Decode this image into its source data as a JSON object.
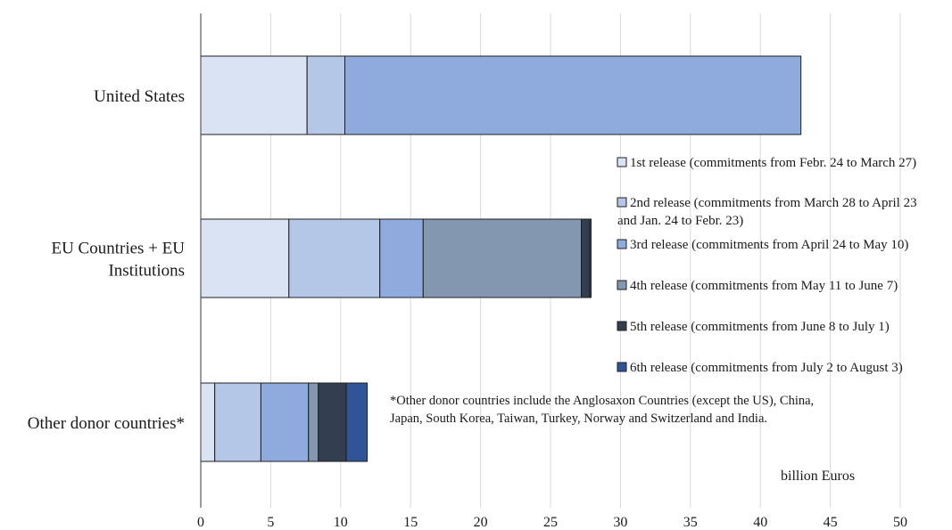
{
  "chart_data": {
    "type": "bar",
    "orientation": "horizontal",
    "stacked": true,
    "categories": [
      "United States",
      "EU Countries + EU Institutions",
      "Other donor countries*"
    ],
    "category_lines": [
      [
        "United States"
      ],
      [
        "EU Countries + EU",
        "Institutions"
      ],
      [
        "Other donor countries*"
      ]
    ],
    "series": [
      {
        "name": "1st release (commitments from Febr. 24 to March 27)",
        "legend_lines": [
          "1st release (commitments from Febr. 24 to March 27)"
        ],
        "color": "#dae3f3",
        "values": [
          7.6,
          6.3,
          1.0
        ]
      },
      {
        "name": "2nd release (commitments from March 28 to April 23 and Jan. 24 to Febr. 23)",
        "legend_lines": [
          "2nd release (commitments from March 28 to April 23",
          "and Jan. 24 to Febr. 23)"
        ],
        "color": "#b4c7e7",
        "values": [
          2.7,
          6.5,
          3.3
        ]
      },
      {
        "name": "3rd release (commitments from April 24 to May 10)",
        "legend_lines": [
          "3rd release (commitments from April 24 to May 10)"
        ],
        "color": "#8faadc",
        "values": [
          32.6,
          3.1,
          3.4
        ]
      },
      {
        "name": "4th release (commitments from May 11 to June 7)",
        "legend_lines": [
          "4th release (commitments from May 11 to June 7)"
        ],
        "color": "#8497b0",
        "values": [
          0,
          11.3,
          0.7
        ]
      },
      {
        "name": "5th release (commitments from June 8 to July 1)",
        "legend_lines": [
          "5th release (commitments from June 8 to July 1)"
        ],
        "color": "#333f50",
        "values": [
          0,
          0.6,
          2.0
        ]
      },
      {
        "name": "6th release (commitments from July 2 to August 3)",
        "legend_lines": [
          "6th release (commitments from July 2 to August 3)"
        ],
        "color": "#2f5597",
        "values": [
          0,
          0.1,
          1.5
        ]
      }
    ],
    "xlim": [
      0,
      50
    ],
    "xticks": [
      0,
      5,
      10,
      15,
      20,
      25,
      30,
      35,
      40,
      45,
      50
    ],
    "grid": "vertical",
    "legend_position": "right",
    "unit_label": "billion Euros",
    "note_lines": [
      "*Other donor countries include the Anglosaxon Countries (except the US), China,",
      "Japan, South Korea, Taiwan, Turkey, Norway and Switzerland and India."
    ],
    "title": "",
    "xlabel": "",
    "ylabel": ""
  }
}
